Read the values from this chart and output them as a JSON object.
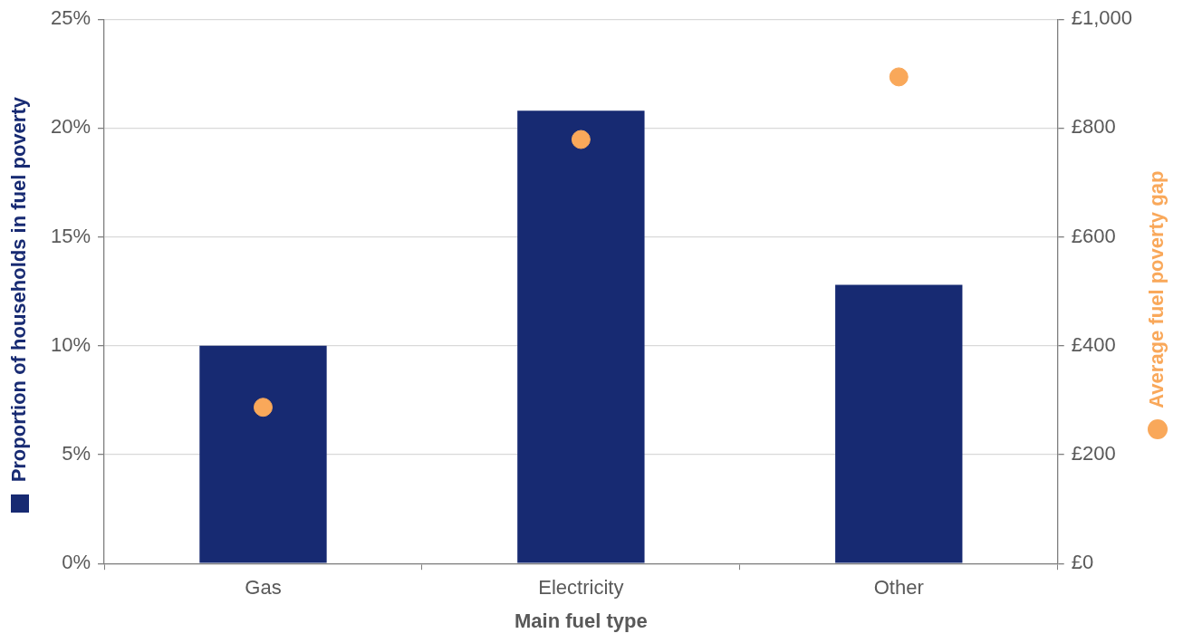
{
  "chart_data": {
    "type": "bar",
    "xlabel": "Main fuel type",
    "ylabel": "Proportion of households in fuel poverty",
    "y2label": "Average fuel poverty gap",
    "categories": [
      "Gas",
      "Electricity",
      "Other"
    ],
    "series": [
      {
        "color": "#172a72",
        "values": [
          10.0,
          20.8,
          12.8
        ]
      },
      {
        "type": "scatter",
        "axis": "y2",
        "color": "#f9a85a",
        "values": [
          287,
          779,
          894
        ]
      }
    ],
    "ylim": [
      0,
      25
    ],
    "yticks": [
      {
        "value": 0,
        "label": "0%"
      },
      {
        "value": 5,
        "label": "5%"
      },
      {
        "value": 10,
        "label": "10%"
      },
      {
        "value": 15,
        "label": "15%"
      },
      {
        "value": 20,
        "label": "20%"
      },
      {
        "value": 25,
        "label": "25%"
      }
    ],
    "y2lim": [
      0,
      1000
    ],
    "y2ticks": [
      {
        "value": 0,
        "label": "£0"
      },
      {
        "value": 200,
        "label": "£200"
      },
      {
        "value": 400,
        "label": "£400"
      },
      {
        "value": 600,
        "label": "£600"
      },
      {
        "value": 800,
        "label": "£800"
      },
      {
        "value": 1000,
        "label": "£1,000"
      }
    ],
    "grid": "y",
    "marker": "circle"
  }
}
